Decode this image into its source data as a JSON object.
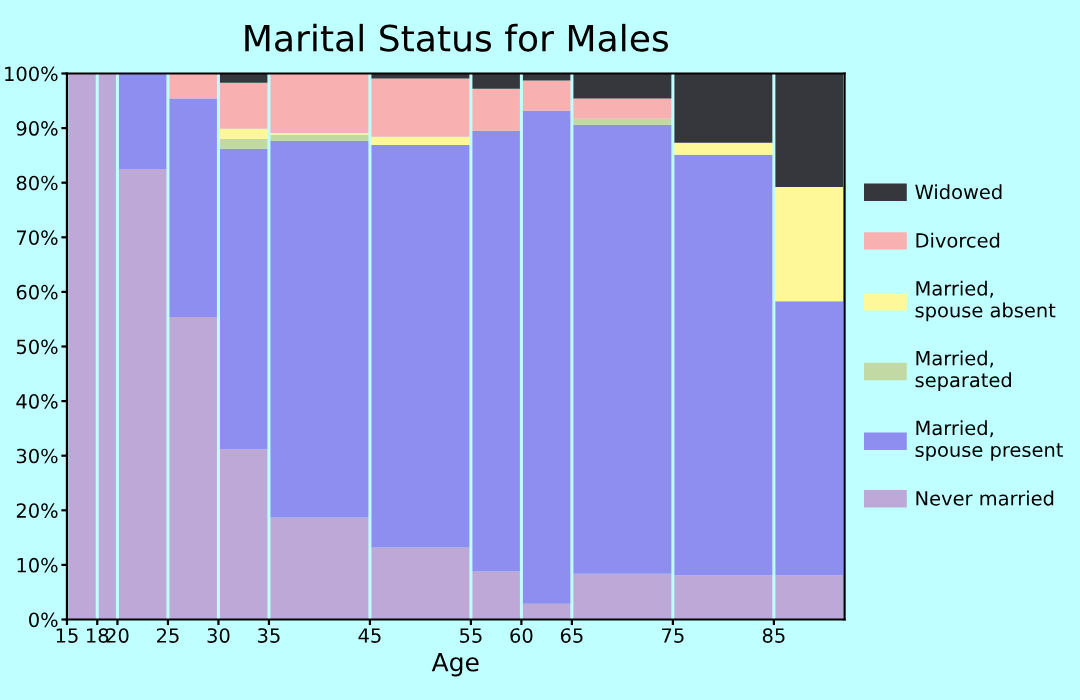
{
  "chart_data": {
    "type": "bar",
    "stacked": true,
    "title": "Marital Status for Males",
    "xlabel": "Age",
    "x": [
      16.5,
      19,
      22.5,
      27.5,
      32.5,
      40,
      50,
      57.5,
      62.5,
      70,
      80,
      88.5
    ],
    "xlim": [
      15,
      92
    ],
    "xticks": [
      15,
      18,
      20,
      25,
      30,
      35,
      45,
      55,
      60,
      65,
      75,
      85
    ],
    "ylim": [
      0,
      100
    ],
    "yticks": [
      {
        "value": 0,
        "label": "0%"
      },
      {
        "value": 10,
        "label": "10%"
      },
      {
        "value": 20,
        "label": "20%"
      },
      {
        "value": 30,
        "label": "30%"
      },
      {
        "value": 40,
        "label": "40%"
      },
      {
        "value": 50,
        "label": "50%"
      },
      {
        "value": 60,
        "label": "60%"
      },
      {
        "value": 70,
        "label": "70%"
      },
      {
        "value": 80,
        "label": "80%"
      },
      {
        "value": 90,
        "label": "90%"
      },
      {
        "value": 100,
        "label": "100%"
      }
    ],
    "legend": "right",
    "grid": false,
    "series": [
      {
        "name": "Never married",
        "color": "#bda8d8",
        "values": [
          100,
          100,
          82.5,
          55.4,
          31.2,
          18.7,
          13.2,
          8.8,
          2.9,
          8.4,
          8.1,
          8.1
        ]
      },
      {
        "name": "Married,\nspouse present",
        "color": "#8e8ef0",
        "values": [
          0,
          0,
          17.5,
          40,
          55,
          69,
          73.7,
          80.7,
          90.3,
          82.2,
          77,
          50.2
        ]
      },
      {
        "name": "Married,\nseparated",
        "color": "#c3d9a3",
        "values": [
          0,
          0,
          0,
          0,
          1.8,
          1.1,
          0,
          0,
          0,
          1.1,
          0,
          0
        ]
      },
      {
        "name": "Married,\nspouse absent",
        "color": "#fff899",
        "values": [
          0,
          0,
          0,
          0,
          1.9,
          0.3,
          1.5,
          0,
          0,
          0,
          2.2,
          20.9
        ]
      },
      {
        "name": "Divorced",
        "color": "#f8b0b0",
        "values": [
          0,
          0,
          0,
          4.6,
          8.4,
          10.9,
          10.7,
          7.7,
          5.5,
          3.7,
          0,
          0
        ]
      },
      {
        "name": "Widowed",
        "color": "#35373d",
        "values": [
          0,
          0,
          0,
          0,
          1.7,
          0,
          0.9,
          2.8,
          1.3,
          4.6,
          12.7,
          20.8
        ]
      }
    ]
  }
}
